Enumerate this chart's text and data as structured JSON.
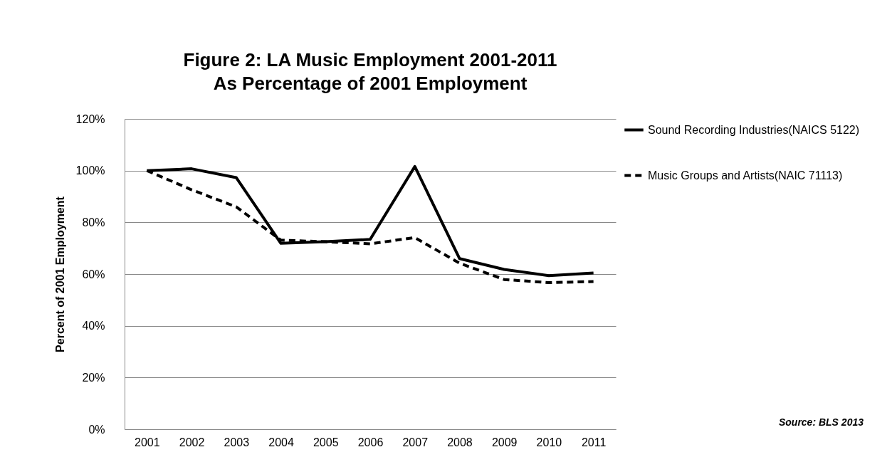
{
  "chart_data": {
    "type": "line",
    "title": "Figure 2: LA Music Employment 2001-2011\nAs Percentage of 2001 Employment",
    "ylabel": "Percent of 2001 Employment",
    "categories": [
      "2001",
      "2002",
      "2003",
      "2004",
      "2005",
      "2006",
      "2007",
      "2008",
      "2009",
      "2010",
      "2011"
    ],
    "series": [
      {
        "name": "Sound Recording Industries(NAICS 5122)",
        "color": "#000000",
        "line_style": "solid",
        "values": [
          100,
          100.7,
          97.3,
          71.9,
          72.5,
          73.4,
          101.6,
          66,
          61.8,
          59.4,
          60.4
        ]
      },
      {
        "name": "Music Groups and Artists(NAIC 71113)",
        "color": "#000000",
        "line_style": "dashed",
        "values": [
          100,
          92.6,
          86,
          73.1,
          72.5,
          71.7,
          74.1,
          64.2,
          57.9,
          56.7,
          57.1
        ]
      }
    ],
    "ylim": [
      0,
      120
    ],
    "yticks": [
      {
        "value": 0,
        "label": "0%"
      },
      {
        "value": 20,
        "label": "20%"
      },
      {
        "value": 40,
        "label": "40%"
      },
      {
        "value": 60,
        "label": "60%"
      },
      {
        "value": 80,
        "label": "80%"
      },
      {
        "value": 100,
        "label": "100%"
      },
      {
        "value": 120,
        "label": "120%"
      }
    ],
    "grid": "y",
    "legend": "right",
    "marker": "none",
    "annotations": [
      "Source: BLS 2013"
    ]
  }
}
